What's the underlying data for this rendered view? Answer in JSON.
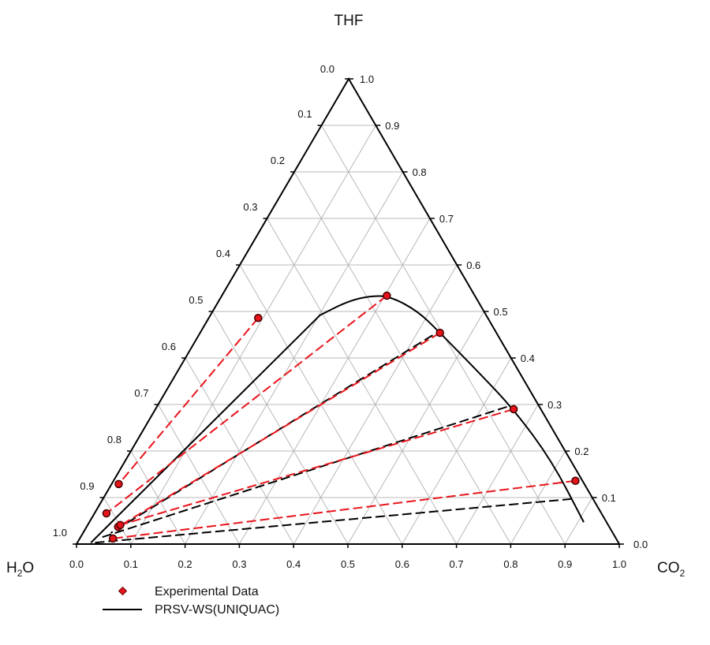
{
  "chart_data": {
    "type": "ternary",
    "vertices": {
      "top": "THF",
      "left": "H2O",
      "right": "CO2"
    },
    "vertex_labels": {
      "top": "THF",
      "left_main": "H",
      "left_sub": "2",
      "left_tail": "O",
      "right_main": "CO",
      "right_sub": "2"
    },
    "ticks": [
      "0.0",
      "0.1",
      "0.2",
      "0.3",
      "0.4",
      "0.5",
      "0.6",
      "0.7",
      "0.8",
      "0.9",
      "1.0"
    ],
    "grid": true,
    "legend": {
      "placement": "bottom-left",
      "entries": [
        {
          "label": "Experimental Data",
          "marker": "diamond",
          "color": "#e8141b"
        },
        {
          "label": "PRSV-WS(UNIQUAC)",
          "marker": "line",
          "color": "#000000"
        }
      ]
    },
    "colors": {
      "experimental": "#e8141b",
      "model": "#000000",
      "grid": "#b8b8b8"
    },
    "experimental_tie_lines": [
      {
        "organic": {
          "THF": 0.486,
          "CO2": 0.091
        },
        "aqueous": {
          "THF": 0.129,
          "CO2": 0.013
        }
      },
      {
        "organic": {
          "THF": 0.534,
          "CO2": 0.304
        },
        "aqueous": {
          "THF": 0.066,
          "CO2": 0.022
        }
      },
      {
        "organic": {
          "THF": 0.454,
          "CO2": 0.442
        },
        "aqueous": {
          "THF": 0.037,
          "CO2": 0.058
        }
      },
      {
        "organic": {
          "THF": 0.29,
          "CO2": 0.66
        },
        "aqueous": {
          "THF": 0.041,
          "CO2": 0.06
        }
      },
      {
        "organic": {
          "THF": 0.136,
          "CO2": 0.851
        },
        "aqueous": {
          "THF": 0.012,
          "CO2": 0.061
        }
      }
    ],
    "model_binodal": [
      {
        "THF": 0.003,
        "CO2": 0.025
      },
      {
        "THF": 0.492,
        "CO2": 0.202
      },
      {
        "THF": 0.522,
        "CO2": 0.238
      },
      {
        "THF": 0.534,
        "CO2": 0.275
      },
      {
        "THF": 0.532,
        "CO2": 0.312
      },
      {
        "THF": 0.5,
        "CO2": 0.379
      },
      {
        "THF": 0.454,
        "CO2": 0.442
      },
      {
        "THF": 0.381,
        "CO2": 0.54
      },
      {
        "THF": 0.29,
        "CO2": 0.66
      },
      {
        "THF": 0.178,
        "CO2": 0.787
      },
      {
        "THF": 0.047,
        "CO2": 0.911
      }
    ],
    "model_tie_lines": [
      {
        "organic": {
          "THF": 0.449,
          "CO2": 0.431
        },
        "aqueous": {
          "THF": 0.024,
          "CO2": 0.051
        }
      },
      {
        "organic": {
          "THF": 0.295,
          "CO2": 0.645
        },
        "aqueous": {
          "THF": 0.015,
          "CO2": 0.04
        }
      },
      {
        "organic": {
          "THF": 0.097,
          "CO2": 0.864
        },
        "aqueous": {
          "THF": 0.003,
          "CO2": 0.032
        }
      }
    ]
  }
}
